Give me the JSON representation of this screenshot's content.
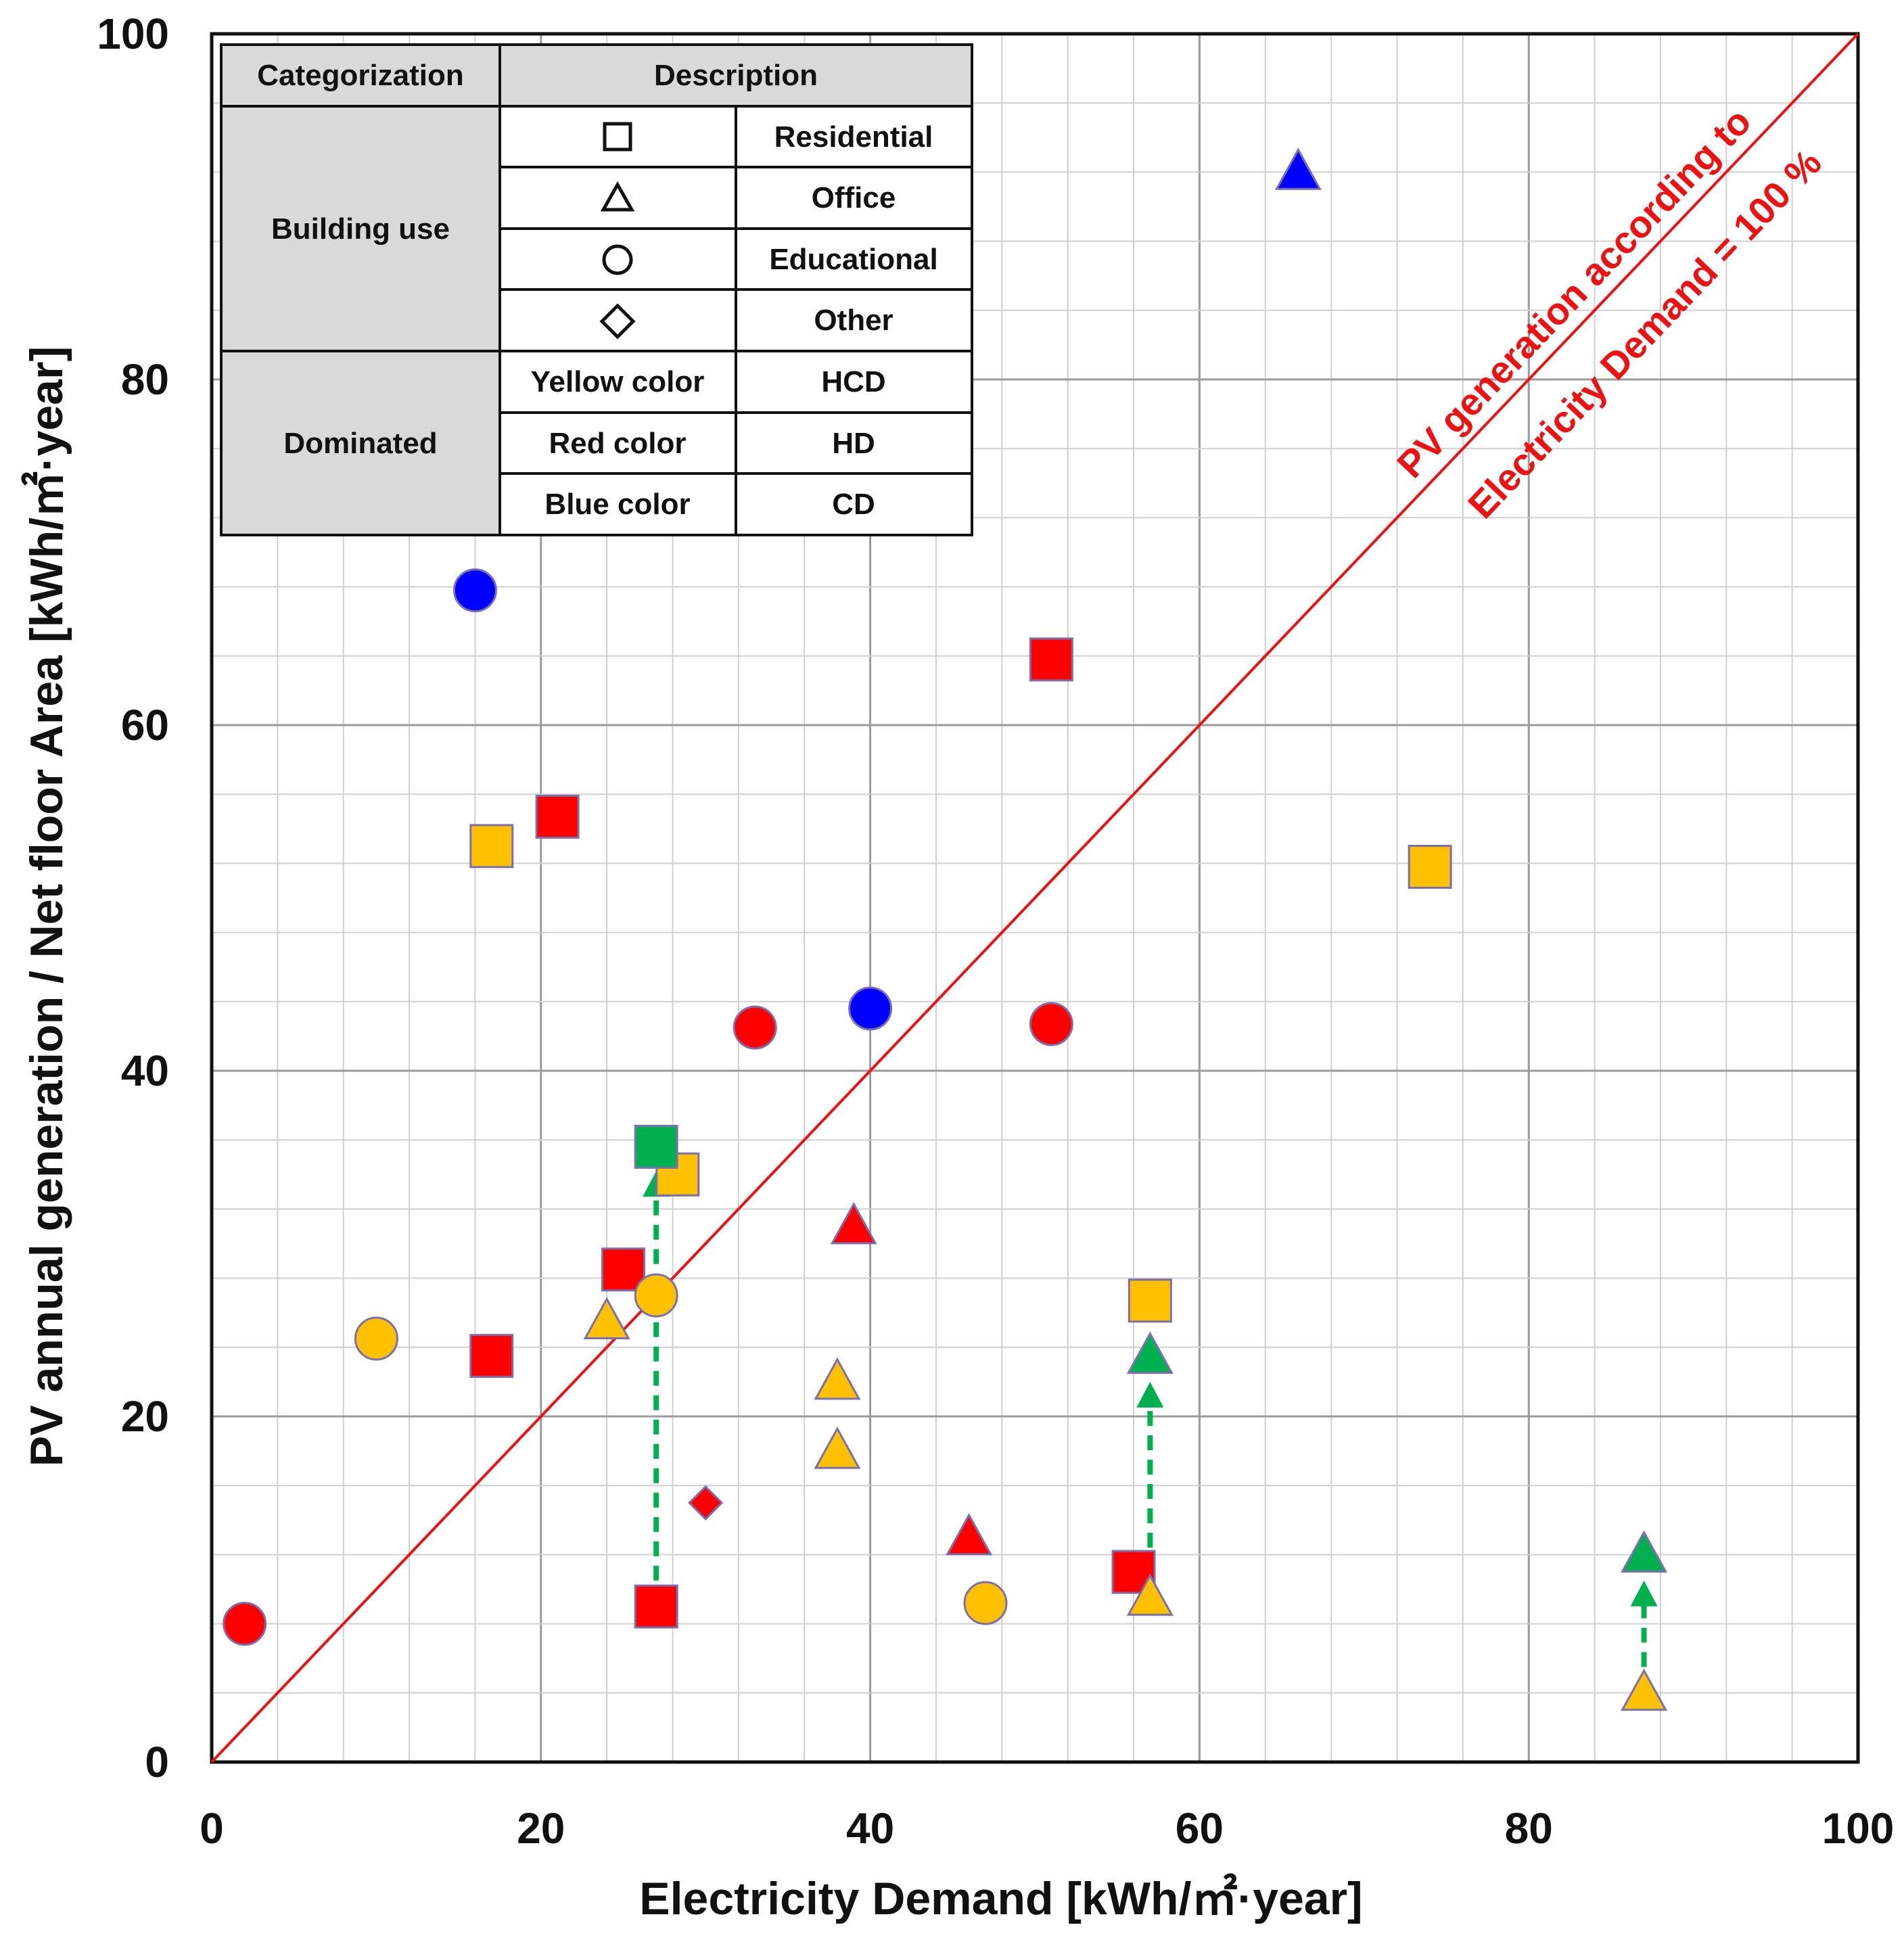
{
  "chart_data": {
    "type": "scatter",
    "xlabel": "Electricity Demand [kWh/㎡·year]",
    "ylabel": "PV annual generation / Net floor Area [kWh/㎡·year]",
    "xlim": [
      0,
      100
    ],
    "ylim": [
      0,
      100
    ],
    "major_ticks": [
      0,
      20,
      40,
      60,
      80,
      100
    ],
    "minor_step": 4,
    "grid": true,
    "reference_line": {
      "from": [
        0,
        0
      ],
      "to": [
        100,
        100
      ],
      "label_line1": "PV generation according to",
      "label_line2": "Electricity Demand = 100 %",
      "color": "#ee1111"
    },
    "colors": {
      "yellow": "#ffc000",
      "red": "#ff0000",
      "blue": "#0000ff",
      "green": "#00b050",
      "marker_edge": "#7a6fb0"
    },
    "points": [
      {
        "x": 2,
        "y": 8,
        "shape": "circle",
        "color": "red"
      },
      {
        "x": 10,
        "y": 24.5,
        "shape": "circle",
        "color": "yellow"
      },
      {
        "x": 16,
        "y": 67.8,
        "shape": "circle",
        "color": "blue"
      },
      {
        "x": 17,
        "y": 53,
        "shape": "square",
        "color": "yellow"
      },
      {
        "x": 17,
        "y": 23.5,
        "shape": "square",
        "color": "red"
      },
      {
        "x": 21,
        "y": 54.7,
        "shape": "square",
        "color": "red"
      },
      {
        "x": 24,
        "y": 25.5,
        "shape": "triangle",
        "color": "yellow"
      },
      {
        "x": 25,
        "y": 28.5,
        "shape": "square",
        "color": "red"
      },
      {
        "x": 27,
        "y": 27,
        "shape": "circle",
        "color": "yellow"
      },
      {
        "x": 27,
        "y": 9,
        "shape": "square",
        "color": "red"
      },
      {
        "x": 28.3,
        "y": 34,
        "shape": "square",
        "color": "yellow"
      },
      {
        "x": 27,
        "y": 35.6,
        "shape": "square",
        "color": "green"
      },
      {
        "x": 30,
        "y": 15,
        "shape": "diamond",
        "color": "red"
      },
      {
        "x": 33,
        "y": 42.5,
        "shape": "circle",
        "color": "red"
      },
      {
        "x": 38,
        "y": 22,
        "shape": "triangle",
        "color": "yellow"
      },
      {
        "x": 38,
        "y": 18,
        "shape": "triangle",
        "color": "yellow"
      },
      {
        "x": 39,
        "y": 31,
        "shape": "triangle",
        "color": "red"
      },
      {
        "x": 40,
        "y": 43.6,
        "shape": "circle",
        "color": "blue"
      },
      {
        "x": 46,
        "y": 13,
        "shape": "triangle",
        "color": "red"
      },
      {
        "x": 47,
        "y": 9.2,
        "shape": "circle",
        "color": "yellow"
      },
      {
        "x": 51,
        "y": 63.8,
        "shape": "square",
        "color": "red"
      },
      {
        "x": 51,
        "y": 42.7,
        "shape": "circle",
        "color": "red"
      },
      {
        "x": 56,
        "y": 11,
        "shape": "square",
        "color": "red"
      },
      {
        "x": 57,
        "y": 26.7,
        "shape": "square",
        "color": "yellow"
      },
      {
        "x": 57,
        "y": 9.5,
        "shape": "triangle",
        "color": "yellow"
      },
      {
        "x": 57,
        "y": 23.5,
        "shape": "triangle",
        "color": "green"
      },
      {
        "x": 66,
        "y": 92,
        "shape": "triangle",
        "color": "blue"
      },
      {
        "x": 74,
        "y": 51.8,
        "shape": "square",
        "color": "yellow"
      },
      {
        "x": 87,
        "y": 4,
        "shape": "triangle",
        "color": "yellow"
      },
      {
        "x": 87,
        "y": 12,
        "shape": "triangle",
        "color": "green"
      }
    ],
    "arrows": [
      {
        "x": 27,
        "y_from": 10.5,
        "y_to": 34.2
      },
      {
        "x": 57,
        "y_from": 11,
        "y_to": 22
      },
      {
        "x": 87,
        "y_from": 5.5,
        "y_to": 10.5
      }
    ],
    "legend": {
      "placement": "top-left",
      "header_col1": "Categorization",
      "header_col2": "Description",
      "group1_label": "Building use",
      "group1_rows": [
        {
          "symbol": "square",
          "desc": "Residential"
        },
        {
          "symbol": "triangle",
          "desc": "Office"
        },
        {
          "symbol": "circle",
          "desc": "Educational"
        },
        {
          "symbol": "diamond",
          "desc": "Other"
        }
      ],
      "group2_label": "Dominated",
      "group2_rows": [
        {
          "label": "Yellow color",
          "desc": "HCD"
        },
        {
          "label": "Red color",
          "desc": "HD"
        },
        {
          "label": "Blue color",
          "desc": "CD"
        }
      ]
    }
  }
}
